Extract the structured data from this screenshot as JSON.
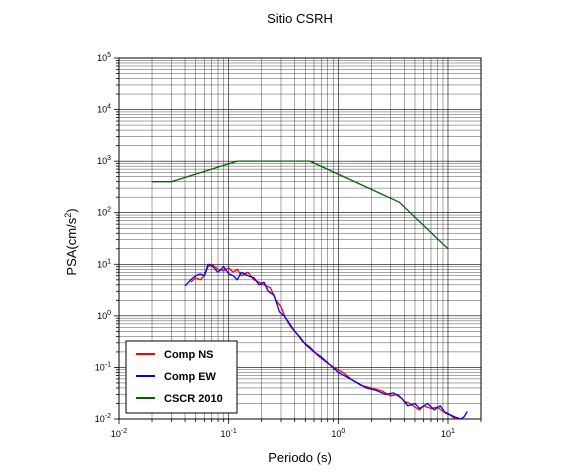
{
  "chart_data": {
    "type": "line",
    "title": "Sitio CSRH",
    "xlabel": "Periodo (s)",
    "ylabel_main": "PSA(cm/s",
    "ylabel_sup": "2",
    "ylabel_close": ")",
    "xscale": "log",
    "yscale": "log",
    "xlim": [
      0.01,
      20
    ],
    "ylim": [
      0.01,
      100000
    ],
    "grid": true,
    "legend_position": "bottom-left",
    "x_ticks": [
      {
        "base": "10",
        "exp": "-2",
        "value": 0.01
      },
      {
        "base": "10",
        "exp": "-1",
        "value": 0.1
      },
      {
        "base": "10",
        "exp": "0",
        "value": 1
      },
      {
        "base": "10",
        "exp": "1",
        "value": 10
      }
    ],
    "y_ticks": [
      {
        "base": "10",
        "exp": "-2",
        "value": 0.01
      },
      {
        "base": "10",
        "exp": "-1",
        "value": 0.1
      },
      {
        "base": "10",
        "exp": "0",
        "value": 1
      },
      {
        "base": "10",
        "exp": "1",
        "value": 10
      },
      {
        "base": "10",
        "exp": "2",
        "value": 100
      },
      {
        "base": "10",
        "exp": "3",
        "value": 1000
      },
      {
        "base": "10",
        "exp": "4",
        "value": 10000
      },
      {
        "base": "10",
        "exp": "5",
        "value": 100000
      }
    ],
    "series": [
      {
        "name": "Comp NS",
        "color": "#ff0000",
        "points": [
          [
            0.045,
            4.5
          ],
          [
            0.05,
            5.5
          ],
          [
            0.055,
            5.0
          ],
          [
            0.06,
            6.0
          ],
          [
            0.065,
            9.0
          ],
          [
            0.07,
            10.0
          ],
          [
            0.08,
            8.0
          ],
          [
            0.09,
            7.5
          ],
          [
            0.1,
            8.5
          ],
          [
            0.11,
            7.0
          ],
          [
            0.12,
            8.0
          ],
          [
            0.13,
            6.0
          ],
          [
            0.15,
            7.0
          ],
          [
            0.17,
            5.0
          ],
          [
            0.19,
            4.5
          ],
          [
            0.21,
            4.0
          ],
          [
            0.24,
            3.5
          ],
          [
            0.27,
            2.0
          ],
          [
            0.3,
            1.5
          ],
          [
            0.33,
            0.9
          ],
          [
            0.37,
            0.6
          ],
          [
            0.42,
            0.45
          ],
          [
            0.47,
            0.32
          ],
          [
            0.55,
            0.25
          ],
          [
            0.65,
            0.17
          ],
          [
            0.8,
            0.12
          ],
          [
            0.95,
            0.095
          ],
          [
            1.1,
            0.08
          ],
          [
            1.3,
            0.06
          ],
          [
            1.6,
            0.045
          ],
          [
            2.0,
            0.04
          ],
          [
            2.5,
            0.035
          ],
          [
            3.0,
            0.028
          ],
          [
            3.5,
            0.03
          ],
          [
            4.0,
            0.022
          ],
          [
            4.5,
            0.02
          ],
          [
            5.0,
            0.017
          ],
          [
            5.5,
            0.015
          ],
          [
            6.0,
            0.018
          ],
          [
            7.0,
            0.016
          ],
          [
            8.0,
            0.017
          ],
          [
            9.0,
            0.014
          ],
          [
            10.0,
            0.013
          ],
          [
            11.0,
            0.011
          ],
          [
            12.0,
            0.01
          ]
        ]
      },
      {
        "name": "Comp EW",
        "color": "#0000ff",
        "points": [
          [
            0.04,
            3.8
          ],
          [
            0.045,
            5.0
          ],
          [
            0.05,
            6.0
          ],
          [
            0.055,
            6.5
          ],
          [
            0.06,
            6.0
          ],
          [
            0.065,
            10.0
          ],
          [
            0.07,
            9.5
          ],
          [
            0.08,
            7.0
          ],
          [
            0.09,
            9.0
          ],
          [
            0.1,
            6.5
          ],
          [
            0.11,
            6.0
          ],
          [
            0.12,
            5.0
          ],
          [
            0.13,
            7.0
          ],
          [
            0.15,
            6.0
          ],
          [
            0.17,
            5.5
          ],
          [
            0.19,
            4.0
          ],
          [
            0.21,
            4.5
          ],
          [
            0.23,
            3.0
          ],
          [
            0.26,
            2.5
          ],
          [
            0.29,
            1.2
          ],
          [
            0.32,
            1.0
          ],
          [
            0.36,
            0.7
          ],
          [
            0.4,
            0.5
          ],
          [
            0.45,
            0.38
          ],
          [
            0.5,
            0.28
          ],
          [
            0.6,
            0.2
          ],
          [
            0.7,
            0.16
          ],
          [
            0.85,
            0.11
          ],
          [
            1.0,
            0.08
          ],
          [
            1.2,
            0.065
          ],
          [
            1.5,
            0.05
          ],
          [
            1.8,
            0.04
          ],
          [
            2.2,
            0.036
          ],
          [
            2.7,
            0.03
          ],
          [
            3.2,
            0.032
          ],
          [
            3.8,
            0.025
          ],
          [
            4.3,
            0.018
          ],
          [
            5.0,
            0.02
          ],
          [
            5.5,
            0.016
          ],
          [
            6.5,
            0.02
          ],
          [
            7.5,
            0.015
          ],
          [
            8.5,
            0.018
          ],
          [
            9.5,
            0.013
          ],
          [
            10.5,
            0.012
          ],
          [
            11.5,
            0.011
          ],
          [
            13.0,
            0.01
          ],
          [
            14.0,
            0.011
          ],
          [
            15.0,
            0.014
          ]
        ]
      },
      {
        "name": "CSCR 2010",
        "color": "#006400",
        "points": [
          [
            0.02,
            400
          ],
          [
            0.03,
            400
          ],
          [
            0.12,
            1000
          ],
          [
            0.55,
            1000
          ],
          [
            3.6,
            160
          ],
          [
            10.0,
            20
          ]
        ]
      }
    ]
  }
}
